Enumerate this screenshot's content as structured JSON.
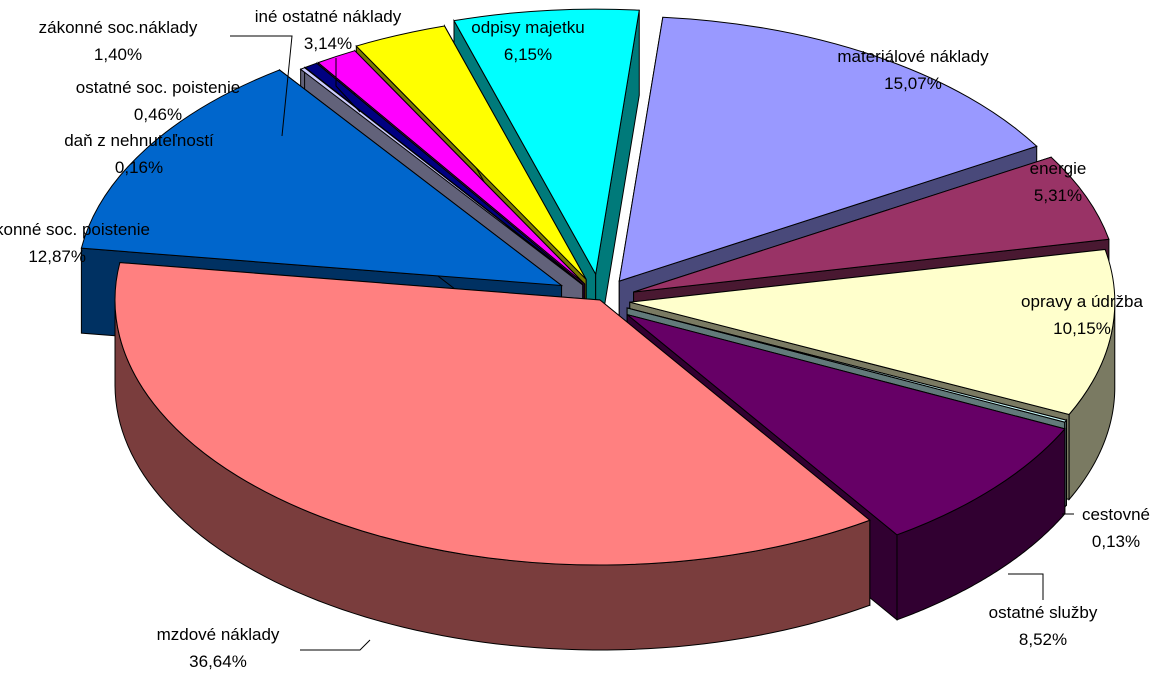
{
  "chart_data": {
    "type": "pie",
    "title": "",
    "slices": [
      {
        "label": "materiálové náklady",
        "value_text": "15,07%",
        "value": 15.07,
        "color": "#9999ff"
      },
      {
        "label": "energie",
        "value_text": "5,31%",
        "value": 5.31,
        "color": "#993366"
      },
      {
        "label": "opravy a údržba",
        "value_text": "10,15%",
        "value": 10.15,
        "color": "#ffffcc"
      },
      {
        "label": "cestovné",
        "value_text": "0,13%",
        "value": 0.13,
        "color": "#ccffff"
      },
      {
        "label": "ostatné služby",
        "value_text": "8,52%",
        "value": 8.52,
        "color": "#660066"
      },
      {
        "label": "mzdové náklady",
        "value_text": "36,64%",
        "value": 36.64,
        "color": "#ff8080"
      },
      {
        "label": "zákonné soc. poistenie",
        "value_text": "12,87%",
        "value": 12.87,
        "color": "#0066cc"
      },
      {
        "label": "daň z nehnuteľností",
        "value_text": "0,16%",
        "value": 0.16,
        "color": "#ccccff"
      },
      {
        "label": "ostatné soc. poistenie",
        "value_text": "0,46%",
        "value": 0.46,
        "color": "#000080"
      },
      {
        "label": "zákonné soc.náklady",
        "value_text": "1,40%",
        "value": 1.4,
        "color": "#ff00ff"
      },
      {
        "label": "iné ostatné náklady",
        "value_text": "3,14%",
        "value": 3.14,
        "color": "#ffff00"
      },
      {
        "label": "odpisy majetku",
        "value_text": "6,15%",
        "value": 6.15,
        "color": "#00ffff"
      }
    ],
    "legend": "none"
  }
}
